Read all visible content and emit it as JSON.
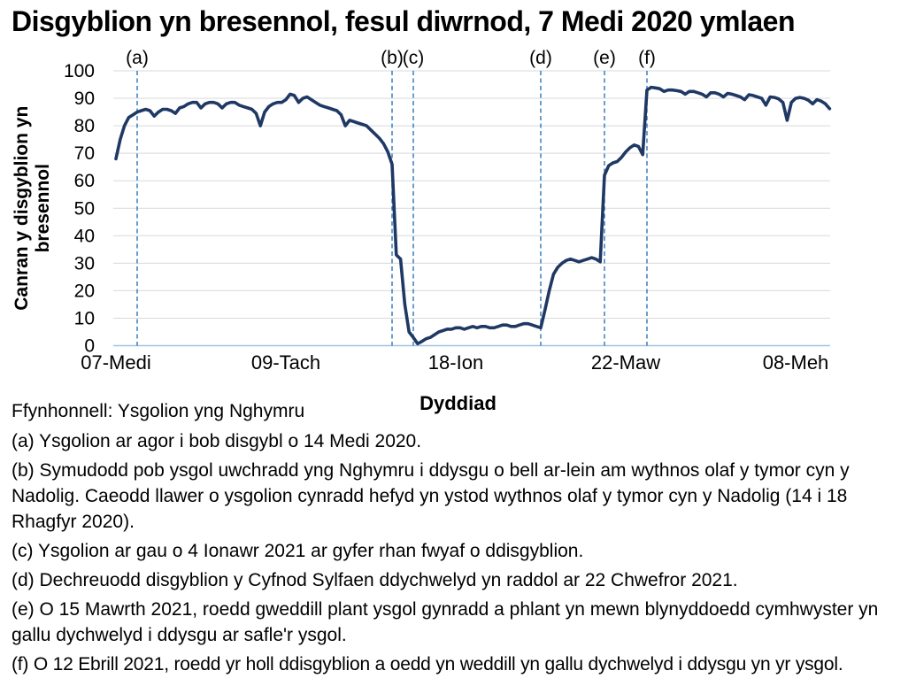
{
  "title": "Disgyblion yn bresennol, fesul diwrnod, 7 Medi 2020 ymlaen",
  "source": "Ffynhonnell: Ysgolion yng Nghymru",
  "chart_data": {
    "type": "line",
    "title": "Disgyblion yn bresennol, fesul diwrnod, 7 Medi 2020 ymlaen",
    "xlabel": "Dyddiad",
    "ylabel": "Canran y disgyblion yn bresennol",
    "ylabel_lines": [
      "Canran y disgyblion yn",
      "bresennol"
    ],
    "ylim": [
      0,
      100
    ],
    "yticks": [
      0,
      10,
      20,
      30,
      40,
      50,
      60,
      70,
      80,
      90,
      100
    ],
    "grid": "horizontal",
    "legend": "none",
    "x_unit": "dyddiau ysgol (school days) o 7 Medi 2020",
    "xticks": [
      {
        "label": "07-Medi",
        "day": 0
      },
      {
        "label": "09-Tach",
        "day": 40
      },
      {
        "label": "18-Ion",
        "day": 80
      },
      {
        "label": "22-Maw",
        "day": 120
      },
      {
        "label": "08-Meh",
        "day": 160
      }
    ],
    "events": [
      {
        "label": "(a)",
        "day": 5
      },
      {
        "label": "(b)",
        "day": 65
      },
      {
        "label": "(c)",
        "day": 70
      },
      {
        "label": "(d)",
        "day": 100
      },
      {
        "label": "(e)",
        "day": 115
      },
      {
        "label": "(f)",
        "day": 125
      }
    ],
    "series": [
      {
        "name": "Canran y disgyblion yn bresennol",
        "values": [
          68,
          75,
          80,
          83,
          84,
          85,
          85.5,
          86,
          85.5,
          83.5,
          85,
          86,
          86,
          85.5,
          84.5,
          86.5,
          87,
          88,
          88.5,
          88.5,
          86.5,
          88,
          88.5,
          88.5,
          88,
          86.5,
          88,
          88.5,
          88.5,
          87.5,
          87,
          86.5,
          86,
          84.5,
          80,
          85,
          87,
          88,
          88.5,
          88.5,
          89.5,
          91.5,
          91,
          88.5,
          90,
          90.5,
          89.5,
          88.5,
          87.5,
          87,
          86.5,
          86,
          85.5,
          84,
          80,
          82,
          81.5,
          81,
          80.5,
          80,
          78.5,
          77,
          75.5,
          73.5,
          70.5,
          66,
          33,
          31.5,
          15,
          5,
          3,
          0.7,
          1.5,
          2.5,
          3,
          4,
          5,
          5.5,
          6,
          6,
          6.5,
          6.5,
          6,
          6.5,
          7,
          6.5,
          7,
          7,
          6.5,
          6.5,
          7,
          7.5,
          7.5,
          7,
          7,
          7.5,
          8,
          8,
          7.5,
          7,
          6.5,
          13,
          20,
          26,
          28.5,
          30,
          31,
          31.5,
          31,
          30.5,
          31,
          31.5,
          32,
          31.5,
          30.5,
          62,
          65.5,
          66.5,
          67,
          68.5,
          70.5,
          72,
          73,
          72.5,
          69.5,
          93,
          94,
          93.8,
          93.5,
          92.5,
          93,
          93,
          92.8,
          92.5,
          91.5,
          92.5,
          92.5,
          92,
          91.5,
          90.5,
          92,
          92,
          91.5,
          90.5,
          91.8,
          91.5,
          91,
          90.5,
          89.5,
          91.3,
          91,
          90.5,
          90,
          87.5,
          90.5,
          90.3,
          89.8,
          88.5,
          82,
          88.5,
          90,
          90.3,
          90,
          89.3,
          88,
          89.5,
          89,
          88,
          86.2
        ]
      }
    ],
    "colors": {
      "line": "#1F3864",
      "event_line": "#2E75B6",
      "axis_line": "#9DC3E6",
      "gridline": "#D9D9D9",
      "text": "#000000"
    }
  },
  "footnotes": [
    {
      "text": "(a) Ysgolion ar agor i bob disgybl o 14 Medi 2020."
    },
    {
      "text": "(b) Symudodd pob ysgol uwchradd yng Nghymru i ddysgu o bell ar-lein am wythnos olaf y tymor cyn y Nadolig. Caeodd llawer o ysgolion cynradd hefyd yn ystod wythnos olaf y tymor cyn y Nadolig (14 i 18 Rhagfyr 2020)."
    },
    {
      "text": "(c) Ysgolion ar gau o 4 Ionawr 2021 ar gyfer rhan fwyaf o ddisgyblion."
    },
    {
      "text": "(d) Dechreuodd disgyblion y Cyfnod Sylfaen ddychwelyd yn raddol ar 22 Chwefror 2021."
    },
    {
      "text": "(e) O 15 Mawrth 2021, roedd gweddill plant ysgol gynradd a phlant yn mewn blynyddoedd cymhwyster yn gallu dychwelyd i ddysgu ar safle'r ysgol."
    },
    {
      "text": "(f) O 12 Ebrill 2021, roedd yr holl ddisgyblion a oedd yn weddill yn gallu dychwelyd i ddysgu yn yr ysgol."
    }
  ]
}
